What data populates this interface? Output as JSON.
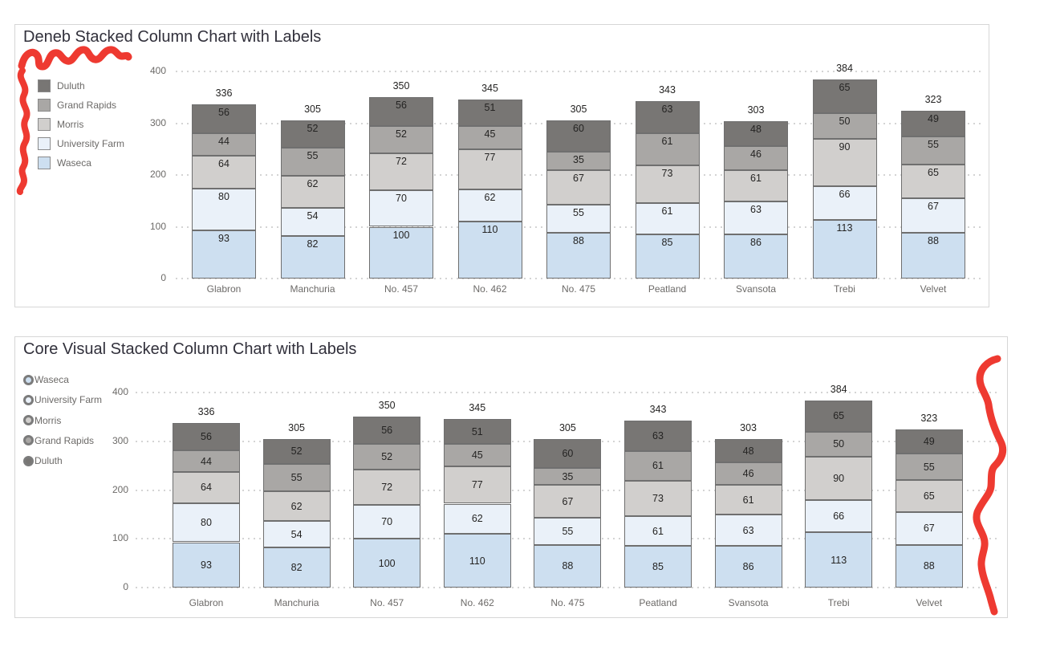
{
  "annotations": {
    "color": "#ee3a31",
    "items": [
      "scribble-top-left-horizontal",
      "scribble-left-vertical-wave",
      "scribble-right-vertical-wave"
    ]
  },
  "panels": [
    {
      "legend_marker": "square",
      "legend_items": [
        {
          "label": "Duluth",
          "color": "#787674"
        },
        {
          "label": "Grand Rapids",
          "color": "#a9a7a5"
        },
        {
          "label": "Morris",
          "color": "#d1cfcd"
        },
        {
          "label": "University Farm",
          "color": "#eaf1f9"
        },
        {
          "label": "Waseca",
          "color": "#cddff0"
        }
      ]
    },
    {
      "legend_marker": "circle",
      "legend_items": [
        {
          "label": "Waseca",
          "color": "#cddff0"
        },
        {
          "label": "University Farm",
          "color": "#eaf1f9"
        },
        {
          "label": "Morris",
          "color": "#d1cfcd"
        },
        {
          "label": "Grand Rapids",
          "color": "#a9a7a5"
        },
        {
          "label": "Duluth",
          "color": "#787674"
        }
      ]
    }
  ],
  "chart_data": [
    {
      "type": "bar",
      "stacked": true,
      "title": "Deneb Stacked Column Chart with Labels",
      "categories": [
        "Glabron",
        "Manchuria",
        "No. 457",
        "No. 462",
        "No. 475",
        "Peatland",
        "Svansota",
        "Trebi",
        "Velvet"
      ],
      "series": [
        {
          "name": "Waseca",
          "color": "#cddff0",
          "values": [
            93,
            82,
            100,
            110,
            88,
            85,
            86,
            113,
            88
          ]
        },
        {
          "name": "University Farm",
          "color": "#eaf1f9",
          "values": [
            80,
            54,
            70,
            62,
            55,
            61,
            63,
            66,
            67
          ]
        },
        {
          "name": "Morris",
          "color": "#d1cfcd",
          "values": [
            64,
            62,
            72,
            77,
            67,
            73,
            61,
            90,
            65
          ]
        },
        {
          "name": "Grand Rapids",
          "color": "#a9a7a5",
          "values": [
            44,
            55,
            52,
            45,
            35,
            61,
            46,
            50,
            55
          ]
        },
        {
          "name": "Duluth",
          "color": "#787674",
          "values": [
            56,
            52,
            56,
            51,
            60,
            63,
            48,
            65,
            49
          ]
        }
      ],
      "totals": [
        336,
        305,
        350,
        345,
        305,
        343,
        303,
        384,
        323
      ],
      "y_ticks": [
        0,
        100,
        200,
        300,
        400
      ],
      "ylim": [
        0,
        400
      ],
      "xlabel": "",
      "ylabel": "",
      "grid": "dotted-horizontal",
      "legend_position": "left"
    },
    {
      "type": "bar",
      "stacked": true,
      "title": "Core Visual Stacked Column Chart with Labels",
      "categories": [
        "Glabron",
        "Manchuria",
        "No. 457",
        "No. 462",
        "No. 475",
        "Peatland",
        "Svansota",
        "Trebi",
        "Velvet"
      ],
      "series": [
        {
          "name": "Waseca",
          "color": "#cddff0",
          "values": [
            93,
            82,
            100,
            110,
            88,
            85,
            86,
            113,
            88
          ]
        },
        {
          "name": "University Farm",
          "color": "#eaf1f9",
          "values": [
            80,
            54,
            70,
            62,
            55,
            61,
            63,
            66,
            67
          ]
        },
        {
          "name": "Morris",
          "color": "#d1cfcd",
          "values": [
            64,
            62,
            72,
            77,
            67,
            73,
            61,
            90,
            65
          ]
        },
        {
          "name": "Grand Rapids",
          "color": "#a9a7a5",
          "values": [
            44,
            55,
            52,
            45,
            35,
            61,
            46,
            50,
            55
          ]
        },
        {
          "name": "Duluth",
          "color": "#787674",
          "values": [
            56,
            52,
            56,
            51,
            60,
            63,
            48,
            65,
            49
          ]
        }
      ],
      "totals": [
        336,
        305,
        350,
        345,
        305,
        343,
        303,
        384,
        323
      ],
      "y_ticks": [
        0,
        100,
        200,
        300,
        400
      ],
      "ylim": [
        0,
        400
      ],
      "xlabel": "",
      "ylabel": "",
      "grid": "dotted-horizontal",
      "legend_position": "left"
    }
  ]
}
